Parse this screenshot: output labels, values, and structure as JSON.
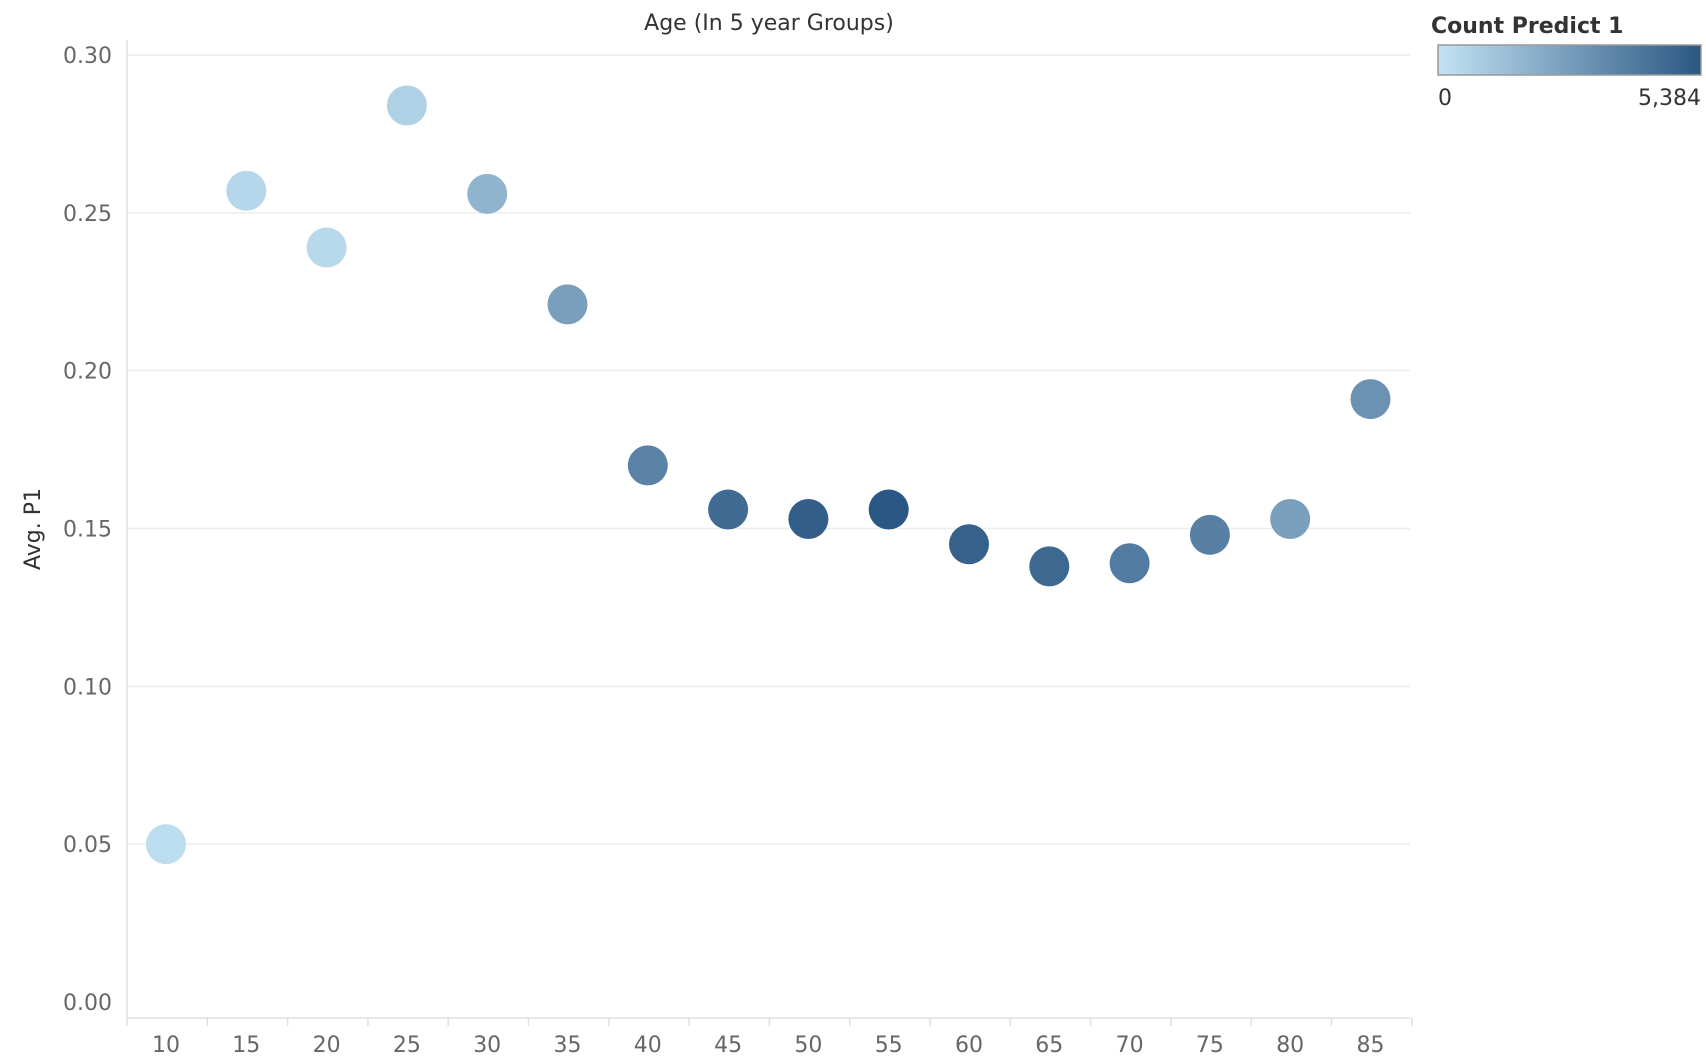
{
  "chart_data": {
    "type": "scatter",
    "title": "Age (In 5 year Groups)",
    "xlabel": "Age (In 5 year Groups)",
    "ylabel": "Avg. P1",
    "x": [
      10,
      15,
      20,
      25,
      30,
      35,
      40,
      45,
      50,
      55,
      60,
      65,
      70,
      75,
      80,
      85
    ],
    "y": [
      0.05,
      0.257,
      0.239,
      0.284,
      0.256,
      0.221,
      0.17,
      0.156,
      0.153,
      0.156,
      0.145,
      0.138,
      0.139,
      0.148,
      0.153,
      0.191
    ],
    "color_values": [
      250,
      450,
      400,
      700,
      1800,
      2600,
      3700,
      4600,
      5100,
      5384,
      5000,
      4700,
      4000,
      3800,
      2600,
      3100
    ],
    "x_ticks": [
      "10",
      "15",
      "20",
      "25",
      "30",
      "35",
      "40",
      "45",
      "50",
      "55",
      "60",
      "65",
      "70",
      "75",
      "80",
      "85"
    ],
    "y_ticks": [
      "0.00",
      "0.05",
      "0.10",
      "0.15",
      "0.20",
      "0.25",
      "0.30"
    ],
    "y_tick_values": [
      0,
      0.05,
      0.1,
      0.15,
      0.2,
      0.25,
      0.3
    ],
    "ylim": [
      0,
      0.3
    ],
    "grid": true,
    "legend": {
      "title": "Count Predict 1",
      "min_label": "0",
      "max_label": "5,384",
      "min": 0,
      "max": 5384,
      "color_low": "#c3e2f4",
      "color_high": "#2a5783",
      "placement": "top-right"
    }
  }
}
